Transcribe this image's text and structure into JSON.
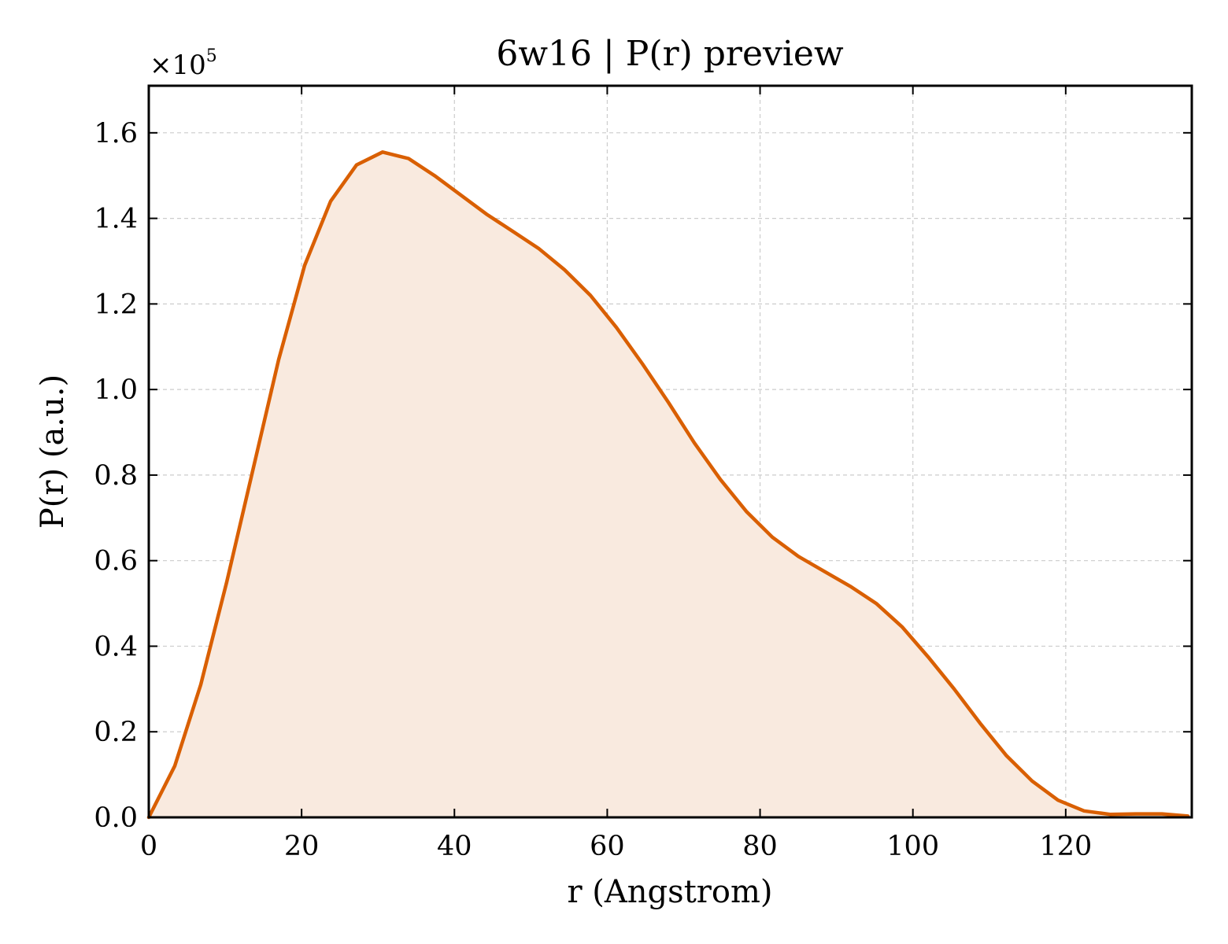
{
  "chart_data": {
    "type": "area",
    "title": "6w16 | P(r) preview",
    "xlabel": "r (Angstrom)",
    "ylabel": "P(r) (a.u.)",
    "y_multiplier": "×10",
    "y_multiplier_exp": "5",
    "xlim": [
      0,
      136.5
    ],
    "ylim": [
      0,
      1.71
    ],
    "grid": true,
    "x_ticks": [
      0,
      20,
      40,
      60,
      80,
      100,
      120
    ],
    "x_tick_labels": [
      "0",
      "20",
      "40",
      "60",
      "80",
      "100",
      "120"
    ],
    "y_ticks": [
      0,
      0.2,
      0.4,
      0.6,
      0.8,
      1.0,
      1.2,
      1.4,
      1.6
    ],
    "y_tick_labels": [
      "0.0",
      "0.2",
      "0.4",
      "0.6",
      "0.8",
      "1.0",
      "1.2",
      "1.4",
      "1.6"
    ],
    "series": [
      {
        "line_color": "#d95f02",
        "fill_color": "#f9eadf",
        "x": [
          0,
          3.4,
          6.8,
          10.2,
          13.6,
          17.0,
          20.4,
          23.8,
          27.2,
          30.6,
          34.0,
          37.4,
          40.8,
          44.2,
          47.6,
          51.0,
          54.4,
          57.8,
          61.2,
          64.6,
          68.0,
          71.4,
          74.8,
          78.2,
          81.6,
          85.0,
          88.4,
          91.8,
          95.2,
          98.6,
          102.0,
          105.4,
          108.8,
          112.2,
          115.6,
          119.0,
          122.4,
          125.8,
          129.2,
          132.6,
          136.0
        ],
        "y": [
          0.0,
          0.12,
          0.31,
          0.55,
          0.81,
          1.07,
          1.29,
          1.44,
          1.525,
          1.555,
          1.54,
          1.5,
          1.455,
          1.41,
          1.37,
          1.33,
          1.28,
          1.22,
          1.145,
          1.06,
          0.97,
          0.875,
          0.79,
          0.715,
          0.655,
          0.61,
          0.575,
          0.54,
          0.5,
          0.445,
          0.375,
          0.3,
          0.22,
          0.145,
          0.085,
          0.04,
          0.015,
          0.007,
          0.008,
          0.008,
          0.003
        ]
      }
    ]
  }
}
